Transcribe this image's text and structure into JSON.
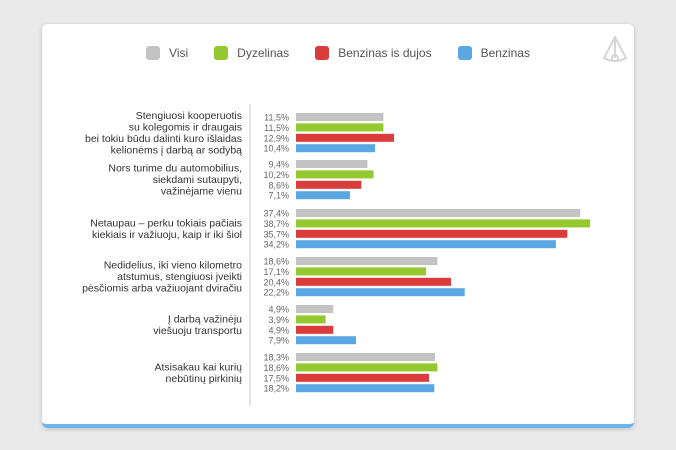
{
  "legend": [
    {
      "name": "Visi",
      "color": "#c3c3c3"
    },
    {
      "name": "Dyzelinas",
      "color": "#93c82e"
    },
    {
      "name": "Benzinas is dujos",
      "color": "#d83c3c"
    },
    {
      "name": "Benzinas",
      "color": "#5aa7e2"
    }
  ],
  "logo_icon": "brand-logo-icon",
  "chart_data": {
    "type": "bar",
    "orientation": "horizontal",
    "categories": [
      [
        "Stengiuosi kooperuotis",
        "su kolegomis ir draugais",
        "bei tokiu būdu dalinti kuro išlaidas",
        "kelionėms į darbą ar sodybą"
      ],
      [
        "Nors turime du automobilius,",
        "siekdami sutaupyti,",
        "važinėjame vienu"
      ],
      [
        "Netaupau – perku tokiais pačiais",
        "kiekiais ir važiuoju, kaip ir iki šiol"
      ],
      [
        "Nedidelius, iki vieno kilometro",
        "atstumus, stengiuosi įveikti",
        "pėsčiomis arba važiuojant dviračiu"
      ],
      [
        "Į darbą važinėju",
        "viešuoju transportu"
      ],
      [
        "Atsisakau kai kurių",
        "nebūtinų pirkinių"
      ]
    ],
    "series": [
      {
        "name": "Visi",
        "color": "#c3c3c3",
        "values": [
          11.5,
          9.4,
          37.4,
          18.6,
          4.9,
          18.3
        ],
        "labels": [
          "11,5%",
          "9,4%",
          "37,4%",
          "18,6%",
          "4,9%",
          "18,3%"
        ]
      },
      {
        "name": "Dyzelinas",
        "color": "#93c82e",
        "values": [
          11.5,
          10.2,
          38.7,
          17.1,
          3.9,
          18.6
        ],
        "labels": [
          "11,5%",
          "10,2%",
          "38,7%",
          "17,1%",
          "3,9%",
          "18,6%"
        ]
      },
      {
        "name": "Benzinas is dujos",
        "color": "#d83c3c",
        "values": [
          12.9,
          8.6,
          35.7,
          20.4,
          4.9,
          17.5
        ],
        "labels": [
          "12,9%",
          "8,6%",
          "35,7%",
          "20,4%",
          "4,9%",
          "17,5%"
        ]
      },
      {
        "name": "Benzinas",
        "color": "#5aa7e2",
        "values": [
          10.4,
          7.1,
          34.2,
          22.2,
          7.9,
          18.2
        ],
        "labels": [
          "10,4%",
          "7,1%",
          "34,2%",
          "22,2%",
          "7,9%",
          "18,2%"
        ]
      }
    ],
    "xlim": [
      0,
      40
    ],
    "grid": false,
    "legend_position": "top"
  }
}
